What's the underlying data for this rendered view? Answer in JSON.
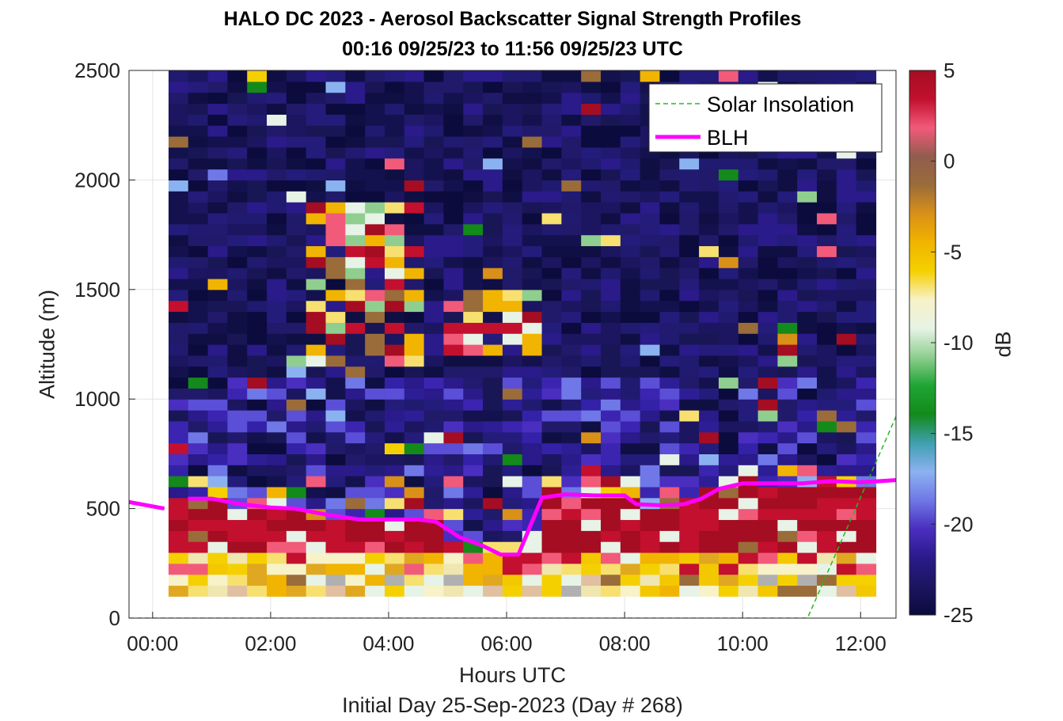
{
  "chart_data": {
    "type": "heatmap",
    "title": "HALO DC 2023 - Aerosol Backscatter Signal Strength Profiles",
    "subtitle": "00:16 09/25/23 to 11:56 09/25/23  UTC",
    "xlabel": "Hours UTC",
    "xsublabel": "Initial Day 25-Sep-2023 (Day # 268)",
    "ylabel": "Altitude (m)",
    "colorbar_label": "dB",
    "xlim": [
      -0.4,
      12.6
    ],
    "ylim": [
      0,
      2500
    ],
    "x_ticks": [
      0,
      2,
      4,
      6,
      8,
      10,
      12
    ],
    "x_tick_labels": [
      "00:00",
      "02:00",
      "04:00",
      "06:00",
      "08:00",
      "10:00",
      "12:00"
    ],
    "y_ticks": [
      0,
      500,
      1000,
      1500,
      2000,
      2500
    ],
    "y_tick_labels": [
      "0",
      "500",
      "1000",
      "1500",
      "2000",
      "2500"
    ],
    "colorbar_range": [
      -25,
      5
    ],
    "colorbar_ticks": [
      5,
      0,
      -5,
      -10,
      -15,
      -20,
      -25
    ],
    "colorbar_tick_labels": [
      "5",
      "0",
      "-5",
      "-10",
      "-15",
      "-20",
      "-25"
    ],
    "colormap": [
      "#0b0b3d",
      "#1c1560",
      "#2a1a8a",
      "#4a2ec0",
      "#6f78e6",
      "#8bb2f0",
      "#3f9fb0",
      "#138a1a",
      "#1ea534",
      "#8fce8f",
      "#e7f3e6",
      "#f7f2c8",
      "#f5d000",
      "#f1b400",
      "#d99018",
      "#9a6c3a",
      "#915c4e",
      "#f25a7a",
      "#c2102e",
      "#a50d22"
    ],
    "grid": true,
    "legend_position": "top-right",
    "cell_width_hours": 0.333,
    "cell_height_m": 50,
    "series": [
      {
        "name": "Solar Insolation",
        "color": "#22bb22",
        "style": "dashed",
        "x": [
          -0.4,
          11.1,
          12.6
        ],
        "y": [
          0,
          0,
          920
        ]
      },
      {
        "name": "BLH",
        "color": "#ff00ff",
        "style": "solid",
        "x": [
          -0.4,
          0.2,
          null,
          0.6,
          1.0,
          1.5,
          2.0,
          2.4,
          3.0,
          3.5,
          4.0,
          4.5,
          4.8,
          5.2,
          5.6,
          5.9,
          6.2,
          6.4,
          6.6,
          7.0,
          7.5,
          8.0,
          8.2,
          8.6,
          9.0,
          9.3,
          9.6,
          10.0,
          10.5,
          11.0,
          11.5,
          12.0,
          12.6
        ],
        "y": [
          530,
          500,
          null,
          545,
          545,
          520,
          505,
          500,
          470,
          450,
          450,
          450,
          440,
          370,
          330,
          290,
          290,
          420,
          550,
          565,
          560,
          560,
          520,
          515,
          520,
          545,
          590,
          615,
          615,
          615,
          625,
          620,
          630
        ]
      }
    ]
  }
}
